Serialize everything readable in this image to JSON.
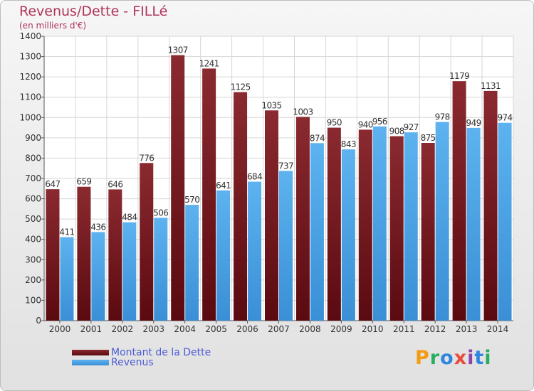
{
  "title": "Revenus/Dette - FILLé",
  "subtitle": "(en milliers d'€)",
  "legend": {
    "debt_label": "Montant de la Dette",
    "revenue_label": "Revenus"
  },
  "logo": {
    "letters": [
      "P",
      "r",
      "o",
      "x",
      "i",
      "t",
      "i"
    ],
    "colors": [
      "#f39c12",
      "#27ae60",
      "#2e86de",
      "#e74c3c",
      "#8e44ad",
      "#2e86de",
      "#27ae60"
    ]
  },
  "colors": {
    "debt": "#6e0f16",
    "revenue": "#4aa3e6"
  },
  "chart_data": {
    "type": "bar",
    "title": "Revenus/Dette - FILLé",
    "subtitle": "(en milliers d'€)",
    "categories": [
      "2000",
      "2001",
      "2002",
      "2003",
      "2004",
      "2005",
      "2006",
      "2007",
      "2008",
      "2009",
      "2010",
      "2011",
      "2012",
      "2013",
      "2014"
    ],
    "series": [
      {
        "name": "Montant de la Dette",
        "values": [
          647,
          659,
          646,
          776,
          1307,
          1241,
          1125,
          1035,
          1003,
          950,
          940,
          908,
          875,
          1179,
          1131
        ]
      },
      {
        "name": "Revenus",
        "values": [
          411,
          436,
          484,
          506,
          570,
          641,
          684,
          737,
          874,
          843,
          956,
          927,
          978,
          949,
          974
        ]
      }
    ],
    "ylim": [
      0,
      1400
    ],
    "yticks": [
      0,
      100,
      200,
      300,
      400,
      500,
      600,
      700,
      800,
      900,
      1000,
      1100,
      1200,
      1300,
      1400
    ],
    "grid": true,
    "legend_position": "bottom-left"
  }
}
